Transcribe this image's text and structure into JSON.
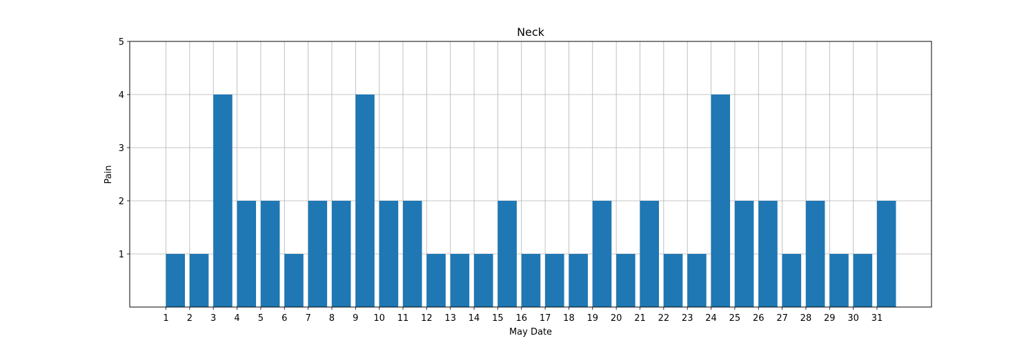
{
  "chart_data": {
    "type": "bar",
    "title": "Neck",
    "xlabel": "May Date",
    "ylabel": "Pain",
    "categories": [
      "1",
      "2",
      "3",
      "4",
      "5",
      "6",
      "7",
      "8",
      "9",
      "10",
      "11",
      "12",
      "13",
      "14",
      "15",
      "16",
      "17",
      "18",
      "19",
      "20",
      "21",
      "22",
      "23",
      "24",
      "25",
      "26",
      "27",
      "28",
      "29",
      "30",
      "31"
    ],
    "values": [
      1,
      1,
      4,
      2,
      2,
      1,
      2,
      2,
      4,
      2,
      2,
      1,
      1,
      1,
      2,
      1,
      1,
      1,
      2,
      1,
      2,
      1,
      1,
      4,
      2,
      2,
      1,
      2,
      1,
      1,
      2
    ],
    "yticks": [
      "1",
      "2",
      "3",
      "4",
      "5"
    ],
    "ylim": [
      0,
      5
    ],
    "grid": true,
    "bar_color": "#1f77b4"
  }
}
